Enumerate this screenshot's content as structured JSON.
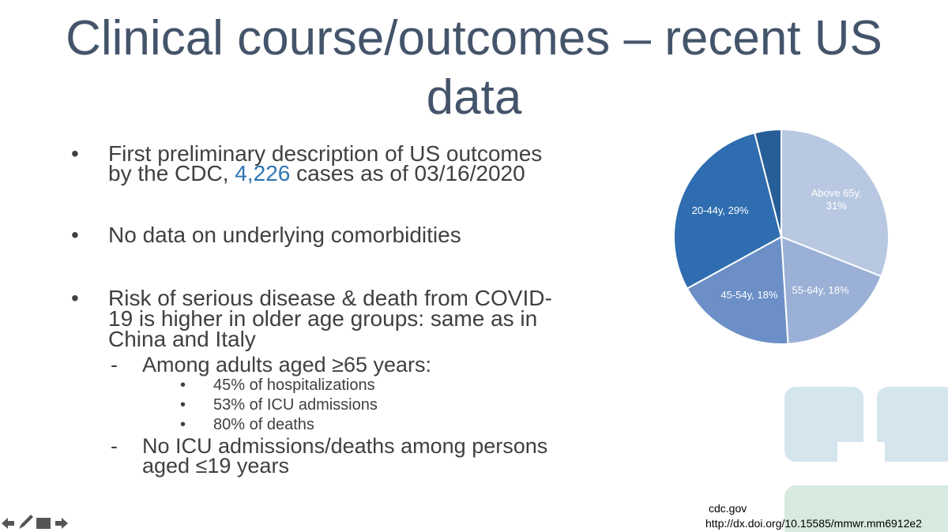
{
  "title": {
    "line_1": "Clinical course/outcomes – recent US",
    "line_2": "data"
  },
  "bullets": {
    "b1": {
      "line_1": "First preliminary description of US outcomes",
      "line_2_start": "by the CDC, ",
      "highlight": "4,226",
      "line_2_end": " cases as of 03/16/2020"
    },
    "b2": "No data on underlying comorbidities",
    "b3": {
      "lines": [
        "Risk of serious disease & death from COVID-",
        "19 is higher in older age groups: same as in",
        "China and Italy"
      ],
      "sub_1": {
        "text": "Among adults aged ≥65 years:",
        "items": [
          "45% of hospitalizations",
          "53% of ICU admissions",
          "80% of deaths"
        ]
      },
      "sub_2": {
        "lines": [
          "No ICU admissions/deaths among persons",
          "aged ≤19 years"
        ]
      }
    }
  },
  "source": {
    "site": "cdc.gov",
    "url": "http://dx.doi.org/10.15585/mmwr.mm6912e2"
  },
  "chart_data": {
    "type": "pie",
    "values": [
      31,
      18,
      18,
      29,
      4
    ],
    "value_labels": [
      "Above 65y, 31%",
      "55-64y, 18%",
      "45-54y, 18%",
      "20-44y, 29%",
      null
    ],
    "colors": [
      "#b9c8e1",
      "#9bb0d6",
      "#6b8fc6",
      "#2f6db0",
      "#285e98"
    ]
  }
}
